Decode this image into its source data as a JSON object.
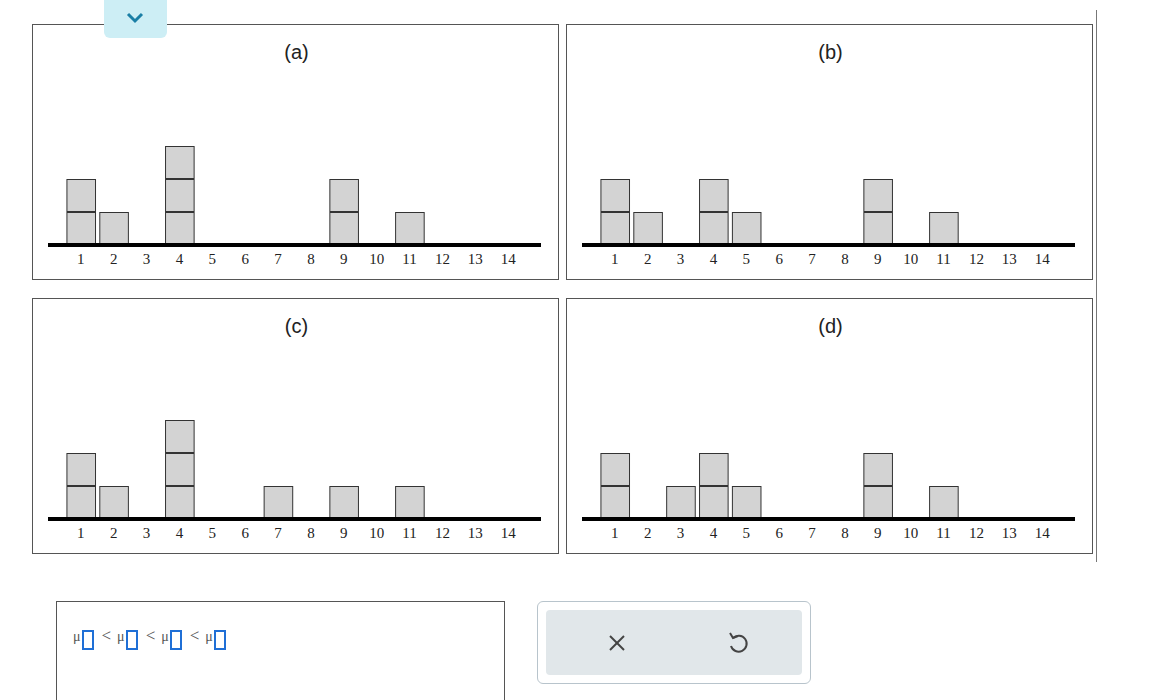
{
  "chart_data": [
    {
      "type": "bar",
      "title": "(a)",
      "x": [
        1,
        2,
        4,
        9,
        11
      ],
      "values": [
        2,
        1,
        3,
        2,
        1
      ],
      "color": "#d3d3d3",
      "xlim": [
        0,
        15
      ],
      "xticks": [
        1,
        2,
        3,
        4,
        5,
        6,
        7,
        8,
        9,
        10,
        11,
        12,
        13,
        14
      ],
      "ylim": [
        0,
        5
      ],
      "tick_labels": "x",
      "grid": false,
      "marker": "square"
    },
    {
      "type": "bar",
      "title": "(b)",
      "x": [
        1,
        2,
        4,
        5,
        9,
        11
      ],
      "values": [
        2,
        1,
        2,
        1,
        2,
        1
      ],
      "color": "#d3d3d3",
      "xlim": [
        0,
        15
      ],
      "xticks": [
        1,
        2,
        3,
        4,
        5,
        6,
        7,
        8,
        9,
        10,
        11,
        12,
        13,
        14
      ],
      "ylim": [
        0,
        5
      ],
      "tick_labels": "x",
      "grid": false,
      "marker": "square"
    },
    {
      "type": "bar",
      "title": "(c)",
      "x": [
        1,
        2,
        4,
        7,
        9,
        11
      ],
      "values": [
        2,
        1,
        3,
        1,
        1,
        1
      ],
      "color": "#d3d3d3",
      "xlim": [
        0,
        15
      ],
      "xticks": [
        1,
        2,
        3,
        4,
        5,
        6,
        7,
        8,
        9,
        10,
        11,
        12,
        13,
        14
      ],
      "ylim": [
        0,
        5
      ],
      "tick_labels": "x",
      "grid": false,
      "marker": "square"
    },
    {
      "type": "bar",
      "title": "(d)",
      "x": [
        1,
        3,
        4,
        5,
        9,
        11
      ],
      "values": [
        2,
        1,
        2,
        1,
        2,
        1
      ],
      "color": "#d3d3d3",
      "xlim": [
        0,
        15
      ],
      "xticks": [
        1,
        2,
        3,
        4,
        5,
        6,
        7,
        8,
        9,
        10,
        11,
        12,
        13,
        14
      ],
      "ylim": [
        0,
        5
      ],
      "tick_labels": "x",
      "grid": false,
      "marker": "square"
    }
  ],
  "answer": {
    "symbol": "μ",
    "relation": "<",
    "slots": 4
  }
}
